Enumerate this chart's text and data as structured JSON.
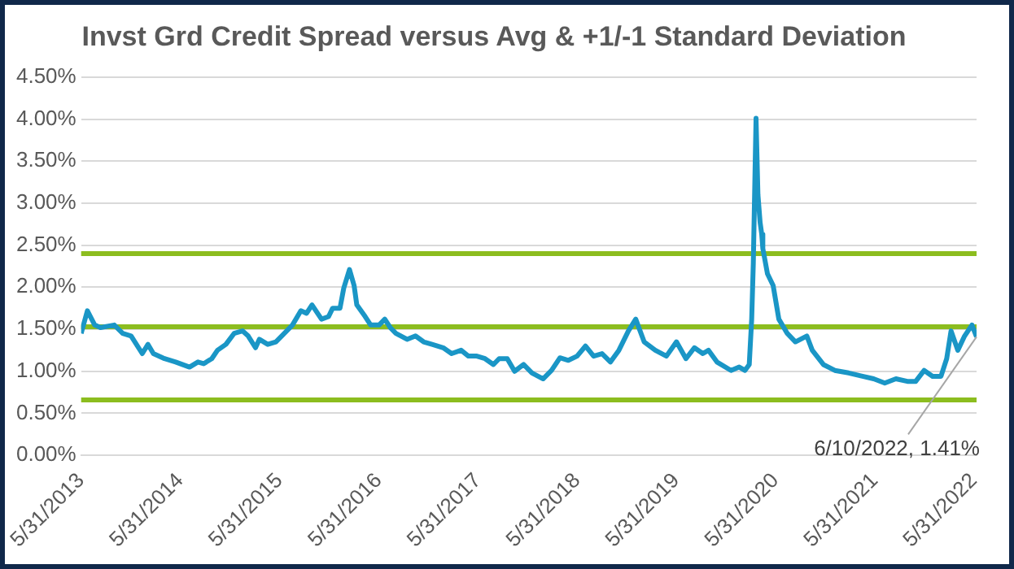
{
  "chart_data": {
    "type": "line",
    "title": "Invst Grd Credit Spread versus Avg & +1/-1 Standard Deviation",
    "series": [
      {
        "color": "#1a96c6",
        "x": [
          "2013-05-31",
          "2013-06-23",
          "2013-07-20",
          "2013-08-10",
          "2013-09-30",
          "2013-10-31",
          "2013-12-01",
          "2014-01-11",
          "2014-02-01",
          "2014-02-21",
          "2014-04-03",
          "2014-05-14",
          "2014-07-04",
          "2014-08-04",
          "2014-08-25",
          "2014-09-24",
          "2014-10-15",
          "2014-11-15",
          "2014-12-15",
          "2015-01-15",
          "2015-02-05",
          "2015-03-04",
          "2015-03-18",
          "2015-04-18",
          "2015-05-18",
          "2015-06-18",
          "2015-07-18",
          "2015-08-18",
          "2015-09-08",
          "2015-09-28",
          "2015-11-02",
          "2015-11-28",
          "2015-12-13",
          "2016-01-09",
          "2016-01-23",
          "2016-02-13",
          "2016-03-01",
          "2016-03-11",
          "2016-04-11",
          "2016-05-01",
          "2016-06-01",
          "2016-06-22",
          "2016-07-12",
          "2016-08-02",
          "2016-09-12",
          "2016-10-13",
          "2016-11-12",
          "2016-12-13",
          "2017-01-23",
          "2017-02-23",
          "2017-03-30",
          "2017-04-26",
          "2017-05-27",
          "2017-06-26",
          "2017-07-27",
          "2017-08-17",
          "2017-09-16",
          "2017-10-13",
          "2017-11-15",
          "2017-12-16",
          "2018-01-26",
          "2018-02-26",
          "2018-03-29",
          "2018-04-29",
          "2018-05-31",
          "2018-07-01",
          "2018-07-31",
          "2018-08-31",
          "2018-10-01",
          "2018-11-01",
          "2018-12-06",
          "2019-01-02",
          "2019-02-02",
          "2019-03-15",
          "2019-04-25",
          "2019-06-01",
          "2019-07-06",
          "2019-08-06",
          "2019-09-06",
          "2019-09-27",
          "2019-10-28",
          "2019-12-19",
          "2020-01-18",
          "2020-02-08",
          "2020-02-24",
          "2020-03-04",
          "2020-03-10",
          "2020-03-20",
          "2020-03-27",
          "2020-04-04",
          "2020-04-10",
          "2020-04-14",
          "2020-05-01",
          "2020-05-22",
          "2020-06-12",
          "2020-07-13",
          "2020-08-12",
          "2020-09-23",
          "2020-10-13",
          "2020-11-23",
          "2021-01-04",
          "2021-02-24",
          "2021-04-16",
          "2021-05-27",
          "2021-07-07",
          "2021-08-17",
          "2021-09-28",
          "2021-10-29",
          "2021-11-29",
          "2021-12-30",
          "2022-01-30",
          "2022-02-20",
          "2022-03-08",
          "2022-04-02",
          "2022-04-27",
          "2022-05-24",
          "2022-06-10"
        ],
        "values": [
          1.45,
          1.72,
          1.55,
          1.52,
          1.55,
          1.45,
          1.42,
          1.21,
          1.32,
          1.21,
          1.15,
          1.11,
          1.05,
          1.11,
          1.09,
          1.15,
          1.25,
          1.32,
          1.45,
          1.48,
          1.42,
          1.28,
          1.38,
          1.32,
          1.35,
          1.45,
          1.55,
          1.72,
          1.69,
          1.79,
          1.62,
          1.65,
          1.75,
          1.75,
          1.99,
          2.21,
          2.02,
          1.79,
          1.65,
          1.55,
          1.55,
          1.62,
          1.52,
          1.45,
          1.38,
          1.42,
          1.35,
          1.32,
          1.28,
          1.21,
          1.25,
          1.18,
          1.18,
          1.15,
          1.08,
          1.15,
          1.15,
          1.0,
          1.08,
          0.98,
          0.91,
          1.01,
          1.16,
          1.13,
          1.18,
          1.3,
          1.18,
          1.21,
          1.11,
          1.25,
          1.48,
          1.62,
          1.35,
          1.25,
          1.18,
          1.35,
          1.15,
          1.28,
          1.21,
          1.25,
          1.11,
          1.01,
          1.05,
          1.01,
          1.08,
          1.62,
          2.29,
          4.01,
          3.1,
          2.77,
          2.63,
          2.46,
          2.16,
          2.02,
          1.62,
          1.45,
          1.35,
          1.42,
          1.25,
          1.08,
          1.01,
          0.98,
          0.94,
          0.91,
          0.86,
          0.91,
          0.88,
          0.88,
          1.01,
          0.94,
          0.94,
          1.15,
          1.48,
          1.25,
          1.42,
          1.55,
          1.41
        ]
      }
    ],
    "xlim": [
      "2013-05-31",
      "2022-06-10"
    ],
    "xticks": [
      {
        "value": "2013-05-31",
        "label": "5/31/2013"
      },
      {
        "value": "2014-05-31",
        "label": "5/31/2014"
      },
      {
        "value": "2015-05-31",
        "label": "5/31/2015"
      },
      {
        "value": "2016-05-31",
        "label": "5/31/2016"
      },
      {
        "value": "2017-05-31",
        "label": "5/31/2017"
      },
      {
        "value": "2018-05-31",
        "label": "5/31/2018"
      },
      {
        "value": "2019-05-31",
        "label": "5/31/2019"
      },
      {
        "value": "2020-05-31",
        "label": "5/31/2020"
      },
      {
        "value": "2021-05-31",
        "label": "5/31/2021"
      },
      {
        "value": "2022-05-31",
        "label": "5/31/2022"
      }
    ],
    "ylim": [
      0,
      4.5
    ],
    "yticks": [
      {
        "value": 0,
        "label": "0.00%"
      },
      {
        "value": 0.5,
        "label": "0.50%"
      },
      {
        "value": 1,
        "label": "1.00%"
      },
      {
        "value": 1.5,
        "label": "1.50%"
      },
      {
        "value": 2,
        "label": "2.00%"
      },
      {
        "value": 2.5,
        "label": "2.50%"
      },
      {
        "value": 3,
        "label": "3.00%"
      },
      {
        "value": 3.5,
        "label": "3.50%"
      },
      {
        "value": 4,
        "label": "4.00%"
      },
      {
        "value": 4.5,
        "label": "4.50%"
      }
    ],
    "ref_lines": [
      {
        "axis": "y",
        "value": 2.4,
        "color": "#8cbd1f"
      },
      {
        "axis": "y",
        "value": 1.53,
        "color": "#8cbd1f"
      },
      {
        "axis": "y",
        "value": 0.66,
        "color": "#8cbd1f"
      }
    ],
    "annotations": [
      {
        "text": "6/10/2022, 1.41%",
        "x": "2022-06-10",
        "y": 1.41
      }
    ],
    "grid": "y",
    "legend": false,
    "marker": "none",
    "line_style": "solid"
  }
}
